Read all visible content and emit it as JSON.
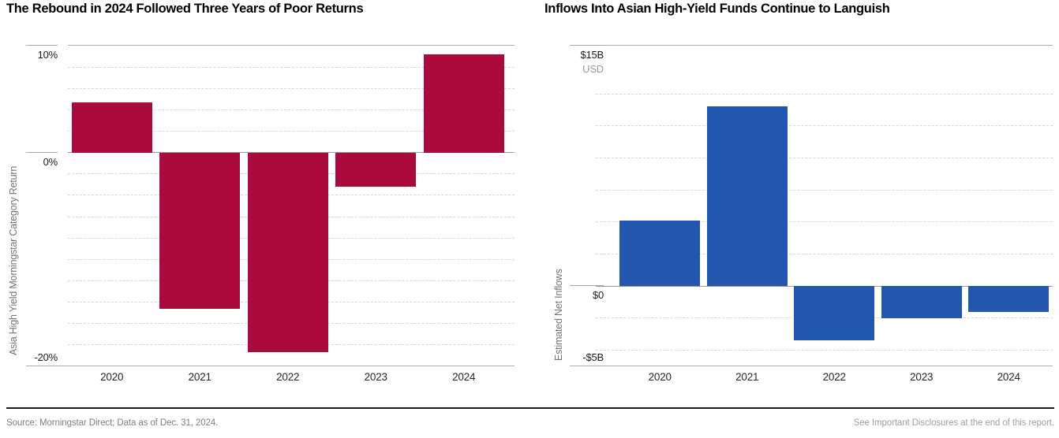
{
  "page": {
    "footer": {
      "source": "Source: Morningstar Direct; Data as of Dec. 31, 2024.",
      "disclosure": "See Important Disclosures at the end of this report."
    }
  },
  "chart_data": [
    {
      "type": "bar",
      "title": "The Rebound in 2024 Followed Three Years of Poor Returns",
      "ylabel": "Asia High Yield Morningstar Category Return",
      "categories": [
        "2020",
        "2021",
        "2022",
        "2023",
        "2024"
      ],
      "values": [
        4.7,
        -14.6,
        -18.7,
        -3.2,
        9.2
      ],
      "value_unit": "percent",
      "ylim": [
        -20,
        10
      ],
      "yticks": [
        {
          "value": 10,
          "label": "10%"
        },
        {
          "value": 0,
          "label": "0%"
        },
        {
          "value": -20,
          "label": "-20%"
        }
      ],
      "gridlines": [
        8,
        6,
        4,
        2,
        -2,
        -4,
        -6,
        -8,
        -10,
        -12,
        -14,
        -16,
        -18
      ],
      "grid": "dashed",
      "legend": "none",
      "bar_color": "#aa0a3c"
    },
    {
      "type": "bar",
      "title": "Inflows Into Asian High-Yield Funds Continue to Languish",
      "ylabel": "Estimated Net Inflows",
      "categories": [
        "2020",
        "2021",
        "2022",
        "2023",
        "2024"
      ],
      "values": [
        4.1,
        11.2,
        -3.4,
        -2.0,
        -1.6
      ],
      "value_unit": "billions_usd",
      "ylim": [
        -5,
        15
      ],
      "yticks": [
        {
          "value": 15,
          "label": "$15B",
          "sub": "USD"
        },
        {
          "value": 0,
          "label": "$0"
        },
        {
          "value": -5,
          "label": "-$5B"
        }
      ],
      "gridlines": [
        12,
        10,
        8,
        6,
        4,
        2,
        -2,
        -4
      ],
      "grid": "dashed",
      "legend": "none",
      "bar_color": "#2356ae"
    }
  ]
}
